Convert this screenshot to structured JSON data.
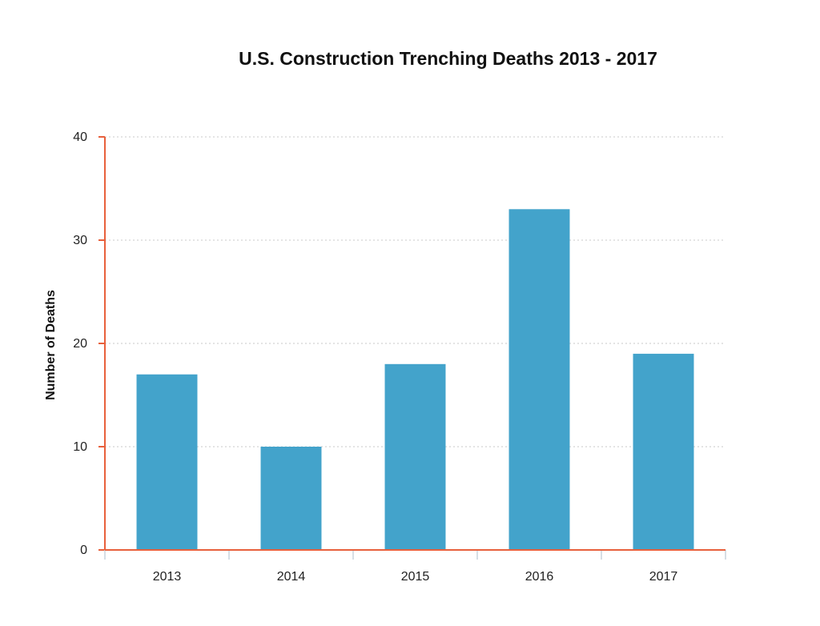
{
  "chart_data": {
    "type": "bar",
    "title": "U.S. Construction Trenching Deaths 2013 - 2017",
    "xlabel": "",
    "ylabel": "Number of Deaths",
    "categories": [
      "2013",
      "2014",
      "2015",
      "2016",
      "2017"
    ],
    "values": [
      17,
      10,
      18,
      33,
      19
    ],
    "ylim": [
      0,
      40
    ],
    "yticks": [
      0,
      10,
      20,
      30,
      40
    ],
    "grid": true,
    "bar_color": "#43A3CB",
    "axis_color": "#E8603C",
    "grid_color": "#C8C8C8"
  }
}
